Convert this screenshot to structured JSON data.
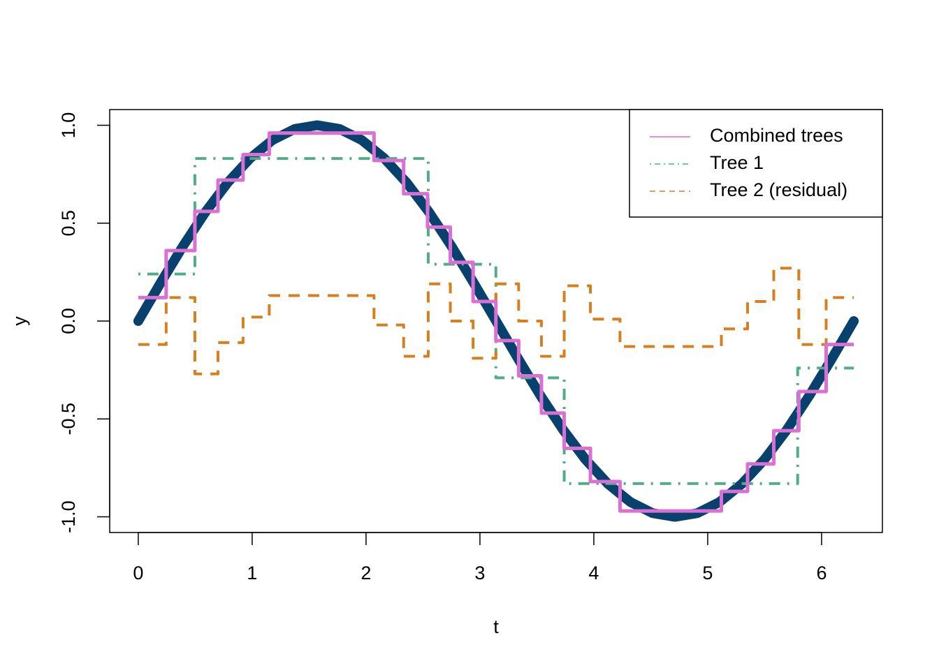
{
  "chart_data": {
    "type": "line",
    "xlabel": "t",
    "ylabel": "y",
    "xlim": [
      -0.251,
      6.534
    ],
    "ylim": [
      -1.08,
      1.08
    ],
    "xticks": [
      0,
      1,
      2,
      3,
      4,
      5,
      6
    ],
    "yticks": [
      {
        "value": -1,
        "label": "-1.0"
      },
      {
        "value": -0.5,
        "label": "-0.5"
      },
      {
        "value": 0,
        "label": "0.0"
      },
      {
        "value": 0.5,
        "label": "0.5"
      },
      {
        "value": 1,
        "label": "1.0"
      }
    ],
    "legend": "topright",
    "series": [
      {
        "color": "#08416e",
        "linestyle": "solid",
        "linewidth": 14,
        "step": false,
        "x": [
          0,
          0.196,
          0.393,
          0.589,
          0.785,
          0.982,
          1.178,
          1.374,
          1.571,
          1.767,
          1.963,
          2.16,
          2.356,
          2.553,
          2.749,
          2.945,
          3.142,
          3.338,
          3.534,
          3.731,
          3.927,
          4.123,
          4.32,
          4.516,
          4.712,
          4.909,
          5.105,
          5.301,
          5.498,
          5.694,
          5.89,
          6.087,
          6.283
        ],
        "values": [
          0,
          0.195,
          0.383,
          0.556,
          0.707,
          0.831,
          0.924,
          0.981,
          1,
          0.981,
          0.924,
          0.831,
          0.707,
          0.556,
          0.383,
          0.195,
          0,
          -0.195,
          -0.383,
          -0.556,
          -0.707,
          -0.831,
          -0.924,
          -0.981,
          -1,
          -0.981,
          -0.924,
          -0.831,
          -0.707,
          -0.556,
          -0.383,
          -0.195,
          0
        ]
      },
      {
        "name": "Tree 1",
        "color": "#52ad87",
        "linestyle": "dotdash",
        "linewidth": 4,
        "step": true,
        "x": [
          0,
          0.497,
          2.546,
          3.14,
          3.74,
          5.79,
          6.283
        ],
        "values": [
          0.24,
          0.83,
          0.29,
          -0.29,
          -0.83,
          -0.24,
          -0.24
        ]
      },
      {
        "name": "Tree 2 (residual)",
        "color": "#d67f1e",
        "linestyle": "dashed",
        "linewidth": 4,
        "step": true,
        "x": [
          0,
          0.245,
          0.497,
          0.7,
          0.92,
          1.15,
          2.07,
          2.33,
          2.546,
          2.74,
          2.94,
          3.14,
          3.34,
          3.54,
          3.74,
          3.97,
          4.23,
          5.12,
          5.35,
          5.58,
          5.8,
          6.04,
          6.283
        ],
        "values": [
          -0.12,
          0.12,
          -0.27,
          -0.11,
          0.02,
          0.13,
          -0.02,
          -0.18,
          0.19,
          0,
          -0.19,
          0.19,
          0,
          -0.18,
          0.18,
          0.01,
          -0.13,
          -0.04,
          0.1,
          0.27,
          -0.12,
          0.12,
          0.12
        ]
      },
      {
        "name": "Combined trees",
        "color": "#da6fd6",
        "linestyle": "solid",
        "linewidth": 5,
        "step": true,
        "x": [
          0,
          0.245,
          0.497,
          0.7,
          0.92,
          1.15,
          2.07,
          2.33,
          2.54,
          2.74,
          2.94,
          3.14,
          3.34,
          3.54,
          3.74,
          3.97,
          4.23,
          5.12,
          5.35,
          5.58,
          5.8,
          6.04,
          6.283
        ],
        "values": [
          0.12,
          0.36,
          0.56,
          0.72,
          0.85,
          0.96,
          0.82,
          0.65,
          0.48,
          0.3,
          0.1,
          -0.1,
          -0.28,
          -0.47,
          -0.65,
          -0.82,
          -0.97,
          -0.87,
          -0.73,
          -0.56,
          -0.36,
          -0.12,
          -0.12
        ]
      }
    ],
    "legend_order": [
      3,
      1,
      2
    ]
  }
}
